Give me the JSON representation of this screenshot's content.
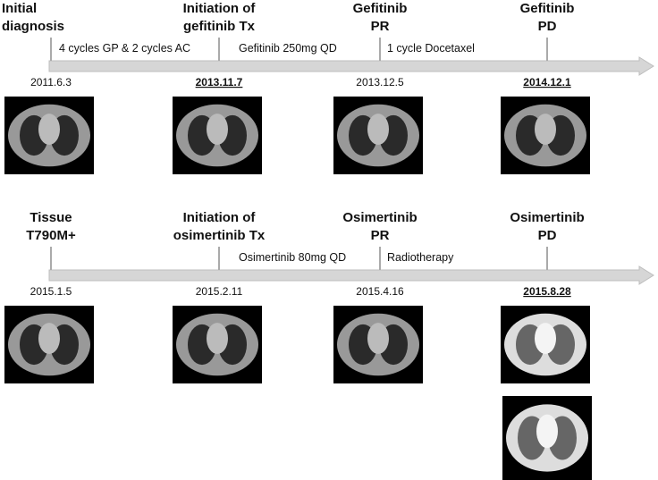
{
  "timelines": [
    {
      "events": [
        {
          "title_lines": [
            "Initial",
            "diagnosis"
          ],
          "date": "2011.6.3",
          "emphasized": false
        },
        {
          "title_lines": [
            "Initiation of",
            "gefitinib Tx"
          ],
          "date": "2013.11.7",
          "emphasized": true
        },
        {
          "title_lines": [
            "Gefitinib",
            "PR"
          ],
          "date": "2013.12.5",
          "emphasized": false
        },
        {
          "title_lines": [
            "Gefitinib",
            "PD"
          ],
          "date": "2014.12.1",
          "emphasized": true
        }
      ],
      "intervals": [
        "4 cycles GP & 2 cycles AC",
        "Gefitinib 250mg QD",
        "1 cycle Docetaxel"
      ]
    },
    {
      "events": [
        {
          "title_lines": [
            "Tissue",
            "T790M+"
          ],
          "date": "2015.1.5",
          "emphasized": false
        },
        {
          "title_lines": [
            "Initiation of",
            "osimertinib Tx"
          ],
          "date": "2015.2.11",
          "emphasized": false
        },
        {
          "title_lines": [
            "Osimertinib",
            "PR"
          ],
          "date": "2015.4.16",
          "emphasized": false
        },
        {
          "title_lines": [
            "Osimertinib",
            "PD"
          ],
          "date": "2015.8.28",
          "emphasized": true
        }
      ],
      "intervals": [
        null,
        "Osimertinib 80mg QD",
        "Radiotherapy"
      ]
    }
  ]
}
